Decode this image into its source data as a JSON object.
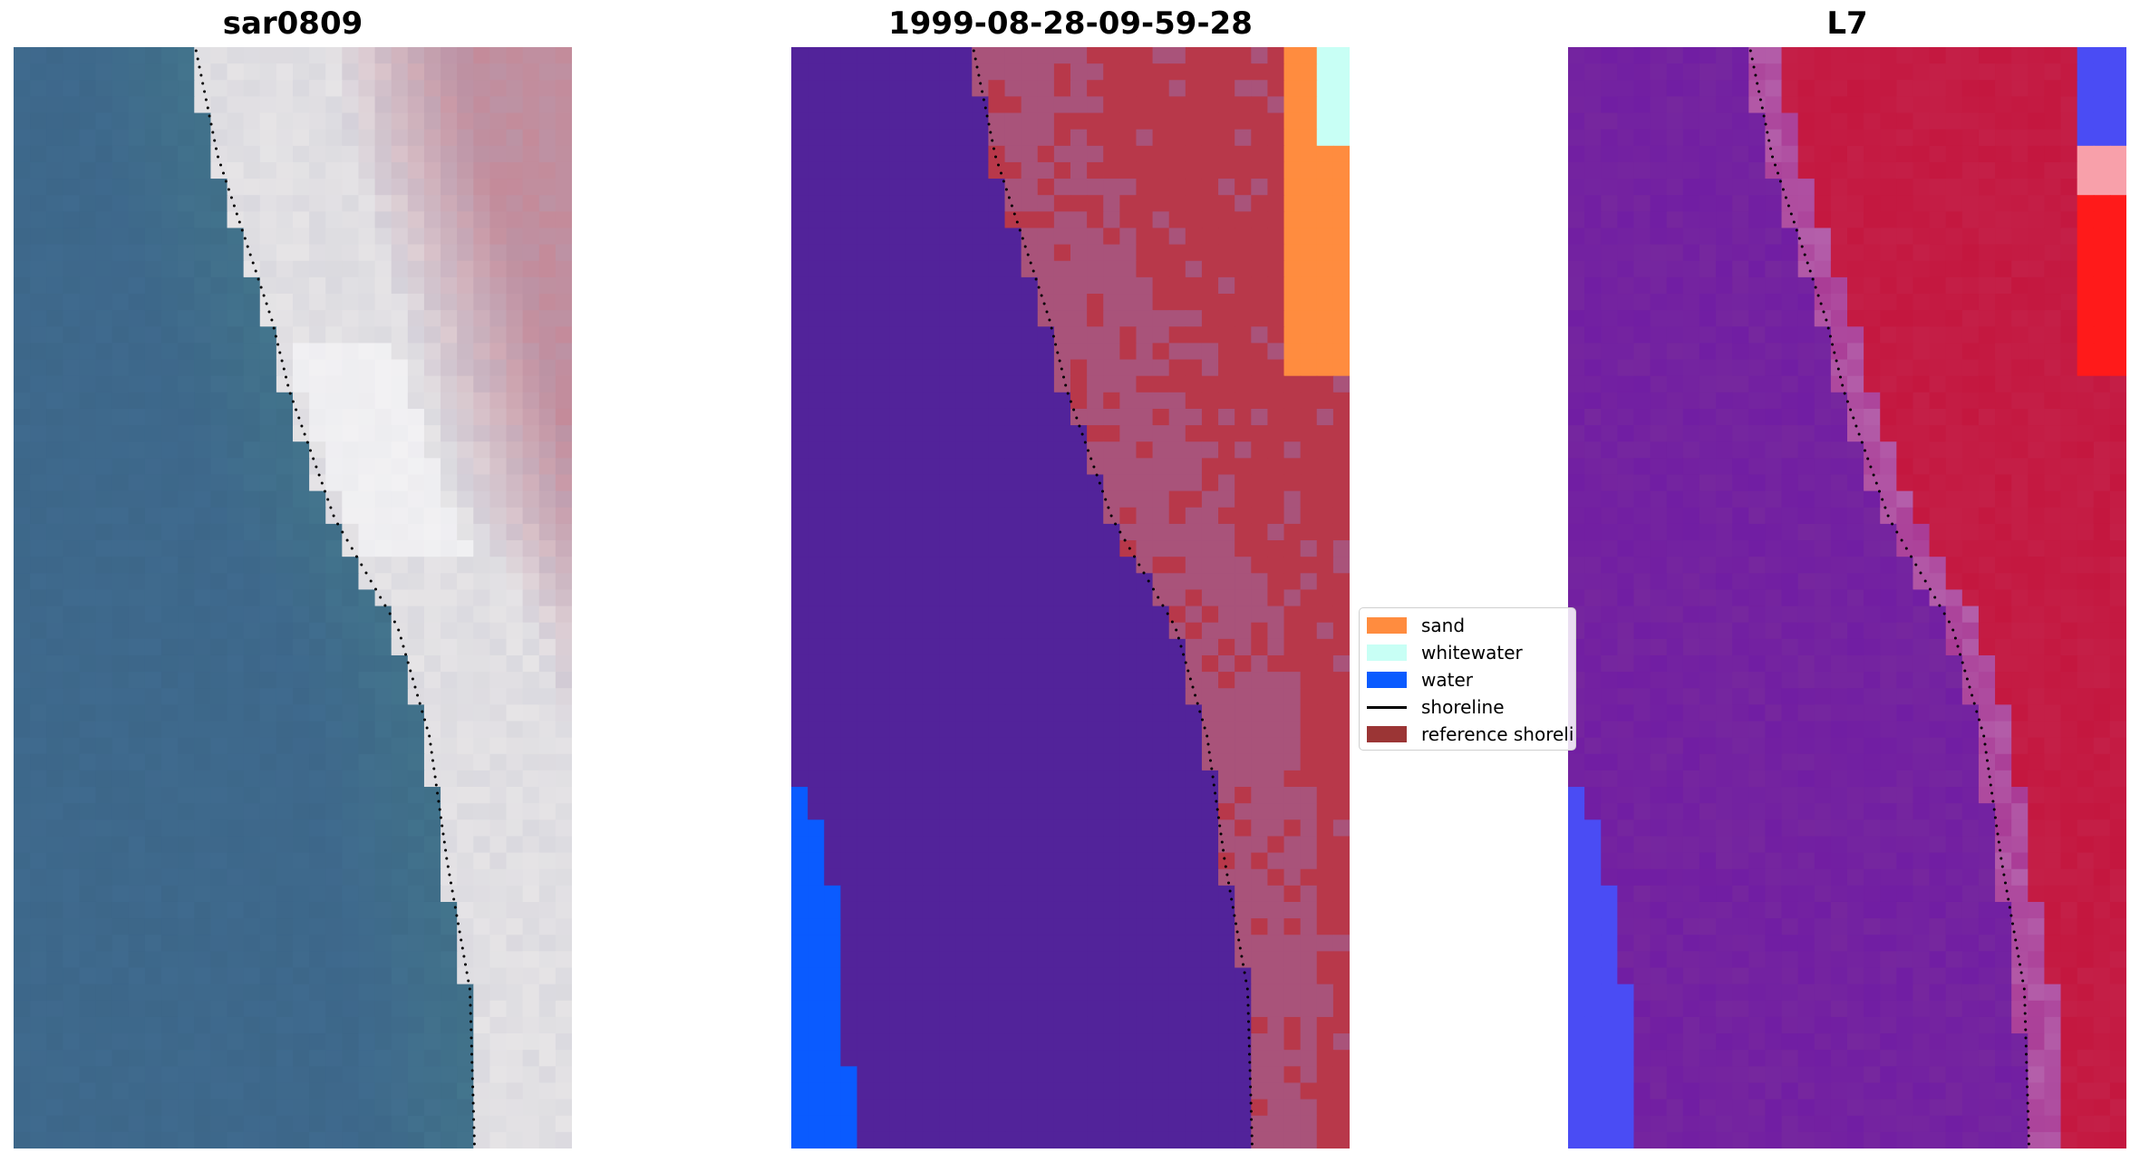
{
  "panels": [
    {
      "title": "sar0809",
      "kind": "rgb"
    },
    {
      "title": "1999-08-28-09-59-28",
      "kind": "classification"
    },
    {
      "title": "L7",
      "kind": "index"
    }
  ],
  "legend": {
    "items": [
      {
        "label": "sand",
        "type": "patch",
        "color": "#FF8C3F"
      },
      {
        "label": "whitewater",
        "type": "patch",
        "color": "#C8FFF5"
      },
      {
        "label": "water",
        "type": "patch",
        "color": "#0A5BFF"
      },
      {
        "label": "shoreline",
        "type": "line",
        "color": "#000000"
      },
      {
        "label": "reference shoreline buffer",
        "type": "patch",
        "color": "#9B3535"
      }
    ]
  },
  "colors": {
    "ocean_rgb": "#3F6A8E",
    "beach_rgb": "#E6E4E6",
    "dune_rgb": "#C48B9A",
    "class_water": "#52239A",
    "class_land": "#B8384A",
    "class_buffer": "#A9537A",
    "class_sand": "#FF8C3F",
    "class_whitewater": "#C8FFF5",
    "class_water_blue": "#0A5BFF",
    "index_water": "#76279E",
    "index_land": "#C4173F",
    "index_blue": "#4A4CF4",
    "index_red": "#FF1A1A"
  }
}
